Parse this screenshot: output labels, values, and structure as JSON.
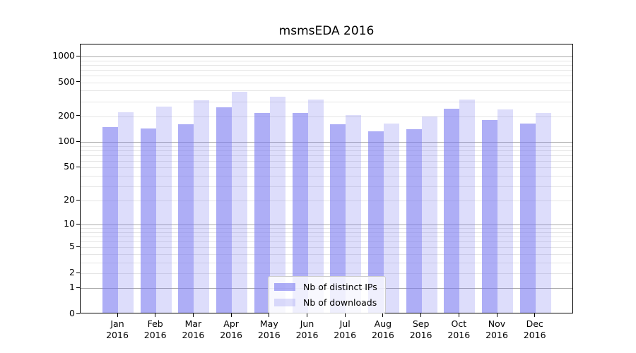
{
  "chart_data": {
    "type": "bar",
    "title": "msmsEDA 2016",
    "categories": [
      "Jan 2016",
      "Feb 2016",
      "Mar 2016",
      "Apr 2016",
      "May 2016",
      "Jun 2016",
      "Jul 2016",
      "Aug 2016",
      "Sep 2016",
      "Oct 2016",
      "Nov 2016",
      "Dec 2016"
    ],
    "series": [
      {
        "name": "Nb of distinct IPs",
        "values": [
          144,
          138,
          156,
          246,
          212,
          212,
          156,
          129,
          137,
          237,
          176,
          160
        ]
      },
      {
        "name": "Nb of downloads",
        "values": [
          215,
          250,
          295,
          375,
          330,
          303,
          200,
          160,
          192,
          305,
          232,
          212
        ]
      }
    ],
    "y_scale": "log1p",
    "ylim": [
      0,
      1381
    ],
    "y_tick_values": [
      0,
      1,
      2,
      5,
      10,
      20,
      50,
      100,
      200,
      500,
      1000
    ],
    "y_tick_labels": [
      "0",
      "1",
      "2",
      "5",
      "10",
      "20",
      "50",
      "100",
      "200",
      "500",
      "1000"
    ],
    "grid": "horizontal, major decades dark + minor light, drawn under semi-transparent bars",
    "legend_position": "lower center inside plot"
  },
  "colors": {
    "bar_distinct_ips": "rgba(120,120,240,0.6)",
    "bar_downloads": "rgba(120,120,240,0.25)",
    "grid_major": "#aaaaaa",
    "grid_minor": "#e5e5e5",
    "spine": "#000000",
    "legend_border": "#cccccc",
    "legend_background": "rgba(255,255,255,0.8)"
  }
}
